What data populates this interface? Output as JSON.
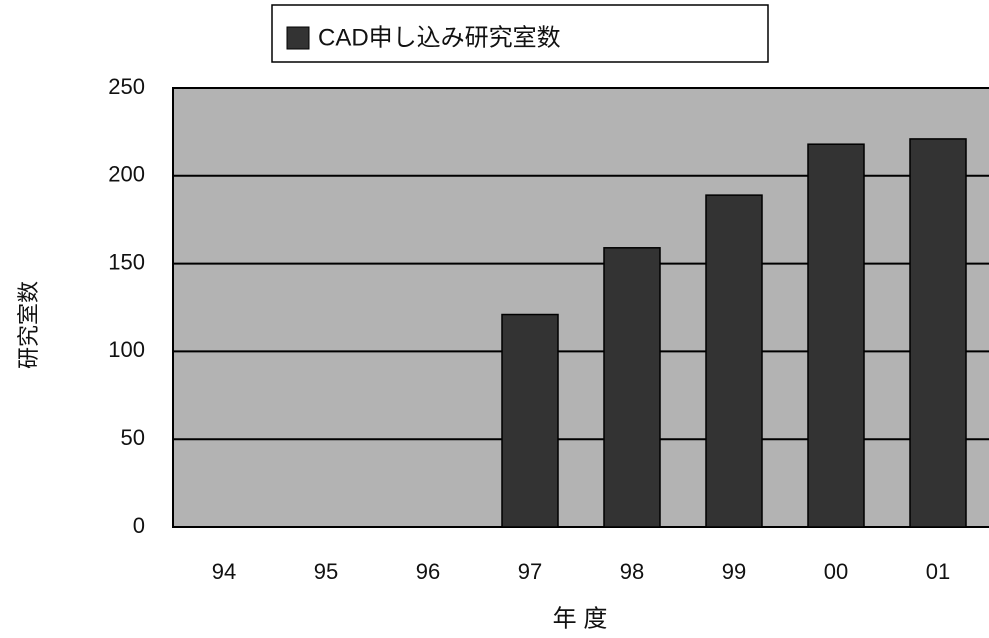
{
  "chart_data": {
    "type": "bar",
    "y_label": "研究室数",
    "x_label": "年 度",
    "categories": [
      "94",
      "95",
      "96",
      "97",
      "98",
      "99",
      "00",
      "01"
    ],
    "series": [
      {
        "name": "CAD申し込み研究室数",
        "color": "#333333",
        "values": [
          null,
          null,
          null,
          121,
          159,
          189,
          218,
          221
        ]
      }
    ],
    "ylim": [
      0,
      250
    ],
    "yticks": [
      0,
      50,
      100,
      150,
      200,
      250
    ],
    "grid": true,
    "plot_background": "#b3b3b3",
    "legend": "top"
  }
}
